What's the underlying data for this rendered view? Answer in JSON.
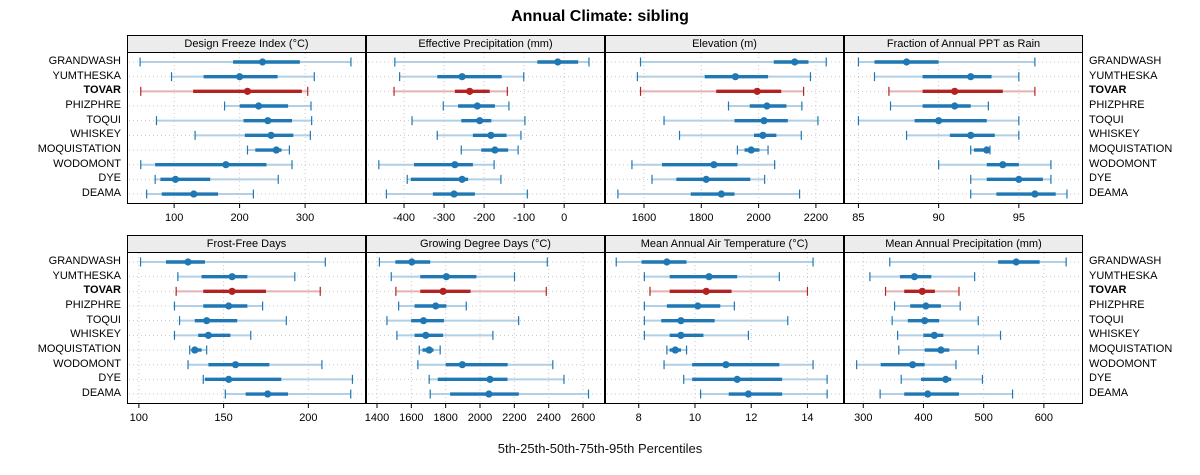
{
  "title": "Annual Climate: sibling",
  "caption": "5th-25th-50th-75th-95th Percentiles",
  "sites": [
    "GRANDWASH",
    "YUMTHESKA",
    "TOVAR",
    "PHIZPHRE",
    "TOQUI",
    "WHISKEY",
    "MOQUISTATION",
    "WODOMONT",
    "DYE",
    "DEAMA"
  ],
  "highlight_site": "TOVAR",
  "colors": {
    "normal": "#1f77b4",
    "normal_light": "#b1cfe5",
    "highlight": "#b22222",
    "highlight_light": "#e4b2b2",
    "strip_bg": "#ececec",
    "grid": "#c9c9c9",
    "border": "#000000"
  },
  "chart_data": {
    "type": "dotplot-trellis-intervals",
    "percentiles": [
      5,
      25,
      50,
      75,
      95
    ],
    "grid": "dotted",
    "rows": 2,
    "cols": 4,
    "panels": [
      {
        "title": "Design Freeze Index (°C)",
        "ticks": [
          100,
          200,
          300
        ],
        "xlim": [
          28,
          393
        ],
        "values": [
          [
            48,
            190,
            235,
            292,
            370
          ],
          [
            96,
            145,
            200,
            258,
            314
          ],
          [
            49,
            129,
            212,
            295,
            304
          ],
          [
            177,
            200,
            229,
            274,
            309
          ],
          [
            73,
            206,
            243,
            280,
            310
          ],
          [
            132,
            208,
            248,
            282,
            308
          ],
          [
            212,
            224,
            256,
            264,
            276
          ],
          [
            49,
            71,
            179,
            241,
            280
          ],
          [
            71,
            79,
            102,
            155,
            259
          ],
          [
            58,
            81,
            130,
            167,
            221
          ]
        ]
      },
      {
        "title": "Effective Precipitation (mm)",
        "ticks": [
          -400,
          -300,
          -200,
          -100,
          0
        ],
        "xlim": [
          -495,
          102
        ],
        "values": [
          [
            -423,
            -67,
            -16,
            35,
            62
          ],
          [
            -411,
            -317,
            -255,
            -156,
            -101
          ],
          [
            -425,
            -273,
            -236,
            -186,
            -142
          ],
          [
            -302,
            -265,
            -217,
            -173,
            -138
          ],
          [
            -380,
            -257,
            -211,
            -182,
            -98
          ],
          [
            -317,
            -228,
            -183,
            -144,
            -108
          ],
          [
            -257,
            -207,
            -173,
            -140,
            -115
          ],
          [
            -463,
            -375,
            -273,
            -228,
            -175
          ],
          [
            -392,
            -383,
            -255,
            -240,
            -158
          ],
          [
            -444,
            -328,
            -275,
            -223,
            -92
          ]
        ]
      },
      {
        "title": "Elevation (m)",
        "ticks": [
          1600,
          1800,
          2000,
          2200
        ],
        "xlim": [
          1464,
          2298
        ],
        "values": [
          [
            1588,
            2053,
            2126,
            2174,
            2236
          ],
          [
            1577,
            1812,
            1919,
            2033,
            2181
          ],
          [
            1588,
            1852,
            1995,
            2079,
            2157
          ],
          [
            1895,
            1969,
            2029,
            2097,
            2151
          ],
          [
            1670,
            1916,
            2019,
            2102,
            2207
          ],
          [
            1724,
            1984,
            2015,
            2062,
            2149
          ],
          [
            1926,
            1951,
            1974,
            2003,
            2033
          ],
          [
            1558,
            1663,
            1844,
            1926,
            2056
          ],
          [
            1628,
            1713,
            1817,
            1971,
            2021
          ],
          [
            1509,
            1763,
            1870,
            1916,
            2143
          ]
        ]
      },
      {
        "title": "Fraction of Annual PPT as Rain",
        "ticks": [
          85,
          90,
          95
        ],
        "xlim": [
          84.1,
          99
        ],
        "values": [
          [
            85,
            86,
            88,
            90,
            96
          ],
          [
            86,
            89,
            92,
            93.3,
            95
          ],
          [
            86.9,
            89,
            91,
            94,
            96
          ],
          [
            87,
            89,
            91,
            92,
            93.1
          ],
          [
            85,
            88.5,
            90,
            93,
            95
          ],
          [
            88,
            90.7,
            92,
            93.5,
            95
          ],
          [
            92,
            92.2,
            93,
            93.1,
            93.2
          ],
          [
            90,
            93,
            94,
            95,
            97
          ],
          [
            92,
            93,
            95,
            96.5,
            97
          ],
          [
            92,
            93.6,
            96,
            97.3,
            98
          ]
        ]
      },
      {
        "title": "Frost-Free Days",
        "ticks": [
          100,
          150,
          200
        ],
        "xlim": [
          93,
          234
        ],
        "values": [
          [
            101,
            116,
            129,
            139,
            210
          ],
          [
            123,
            137,
            155,
            164,
            192
          ],
          [
            122,
            138,
            155,
            175,
            207
          ],
          [
            121,
            138,
            153,
            164,
            173
          ],
          [
            124,
            133,
            140,
            158,
            187
          ],
          [
            121,
            135,
            141,
            154,
            166
          ],
          [
            130,
            131,
            133,
            137,
            140
          ],
          [
            129,
            141,
            157,
            177,
            208
          ],
          [
            138,
            139,
            153,
            184,
            226
          ],
          [
            151,
            163,
            176,
            188,
            225
          ]
        ]
      },
      {
        "title": "Growing Degree Days (°C)",
        "ticks": [
          1400,
          1600,
          1800,
          2000,
          2200,
          2400,
          2600
        ],
        "xlim": [
          1336,
          2728
        ],
        "values": [
          [
            1414,
            1507,
            1603,
            1710,
            2392
          ],
          [
            1483,
            1652,
            1804,
            1979,
            2201
          ],
          [
            1510,
            1652,
            1785,
            1945,
            2386
          ],
          [
            1526,
            1619,
            1742,
            1804,
            1920
          ],
          [
            1458,
            1599,
            1671,
            1790,
            2225
          ],
          [
            1516,
            1619,
            1684,
            1785,
            2075
          ],
          [
            1646,
            1665,
            1704,
            1729,
            1768
          ],
          [
            1638,
            1800,
            1897,
            2161,
            2424
          ],
          [
            1704,
            1754,
            2058,
            2160,
            2489
          ],
          [
            1710,
            1826,
            2052,
            2226,
            2632
          ]
        ]
      },
      {
        "title": "Mean Annual Air Temperature (°C)",
        "ticks": [
          8,
          10,
          12,
          14
        ],
        "xlim": [
          6.8,
          15.3
        ],
        "values": [
          [
            7.2,
            8.1,
            9.0,
            9.7,
            14.2
          ],
          [
            8.2,
            9.1,
            10.5,
            11.5,
            13.0
          ],
          [
            8.4,
            9.1,
            10.4,
            11.3,
            14.0
          ],
          [
            8.2,
            9.0,
            10.1,
            10.9,
            11.4
          ],
          [
            8.2,
            8.8,
            9.5,
            10.7,
            13.3
          ],
          [
            8.2,
            9.1,
            9.5,
            10.3,
            11.9
          ],
          [
            9.0,
            9.1,
            9.3,
            9.5,
            9.7
          ],
          [
            8.9,
            9.9,
            11.1,
            13.0,
            14.2
          ],
          [
            9.6,
            9.9,
            11.5,
            13.1,
            14.7
          ],
          [
            10.2,
            11.2,
            11.9,
            13.1,
            14.7
          ]
        ]
      },
      {
        "title": "Mean Annual Precipitation (mm)",
        "ticks": [
          300,
          400,
          500,
          600
        ],
        "xlim": [
          268,
          665
        ],
        "values": [
          [
            344,
            524,
            554,
            593,
            637
          ],
          [
            311,
            361,
            385,
            413,
            485
          ],
          [
            337,
            368,
            398,
            419,
            459
          ],
          [
            352,
            378,
            404,
            429,
            461
          ],
          [
            348,
            374,
            402,
            426,
            491
          ],
          [
            357,
            400,
            418,
            433,
            528
          ],
          [
            359,
            402,
            429,
            443,
            491
          ],
          [
            289,
            329,
            382,
            402,
            454
          ],
          [
            363,
            396,
            437,
            446,
            498
          ],
          [
            328,
            368,
            407,
            459,
            548
          ]
        ]
      }
    ]
  }
}
